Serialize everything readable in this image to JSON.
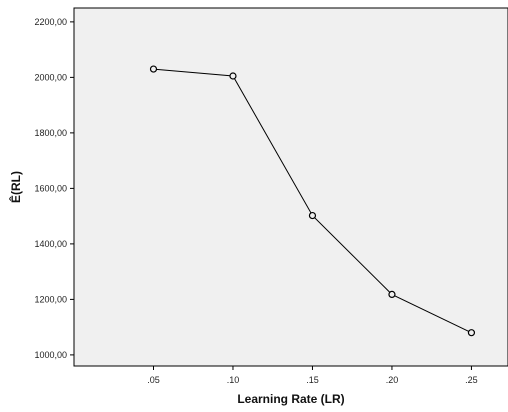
{
  "chart_data": {
    "type": "line",
    "x": [
      0.05,
      0.1,
      0.15,
      0.2,
      0.25
    ],
    "x_tick_labels": [
      ".05",
      ".10",
      ".15",
      ".20",
      ".25"
    ],
    "series": [
      {
        "values": [
          2030,
          2005,
          1502,
          1218,
          1080
        ]
      }
    ],
    "xlabel": "Learning Rate (LR)",
    "ylabel": "Ê(RL)",
    "xlim": [
      0.0,
      0.273
    ],
    "ylim": [
      960,
      2250
    ],
    "y_ticks": [
      1000,
      1200,
      1400,
      1600,
      1800,
      2000,
      2200
    ],
    "y_tick_labels": [
      "1000,00",
      "1200,00",
      "1400,00",
      "1600,00",
      "1800,00",
      "2000,00",
      "2200,00"
    ],
    "grid": false,
    "marker": "hollow-circle",
    "colors": {
      "plot_background": "#f0f0f0",
      "line": "#000000"
    }
  }
}
